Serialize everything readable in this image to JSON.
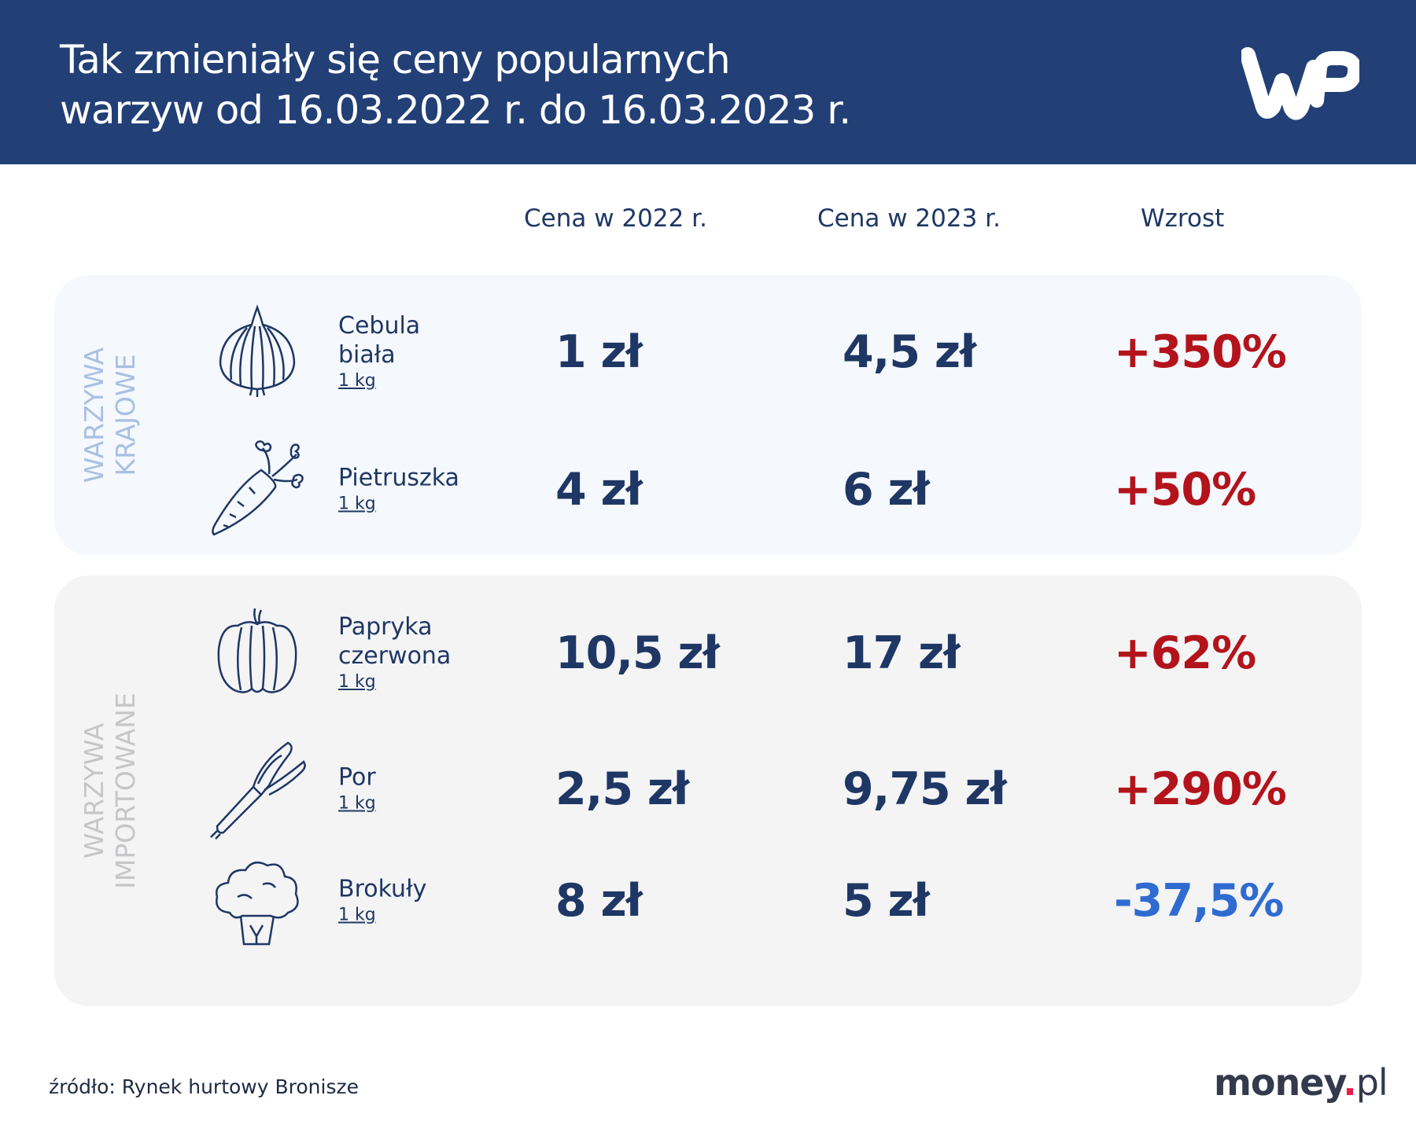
{
  "header": {
    "title_line1": "Tak zmieniały się ceny popularnych",
    "title_line2": "warzyw od 16.03.2022 r. do 16.03.2023 r.",
    "logo": "WP"
  },
  "columns": [
    "Cena w 2022 r.",
    "Cena w 2023 r.",
    "Wzrost"
  ],
  "groups": [
    {
      "label_line1": "WARZYWA",
      "label_line2": "KRAJOWE",
      "color": "#a9bfe3"
    },
    {
      "label_line1": "WARZYWA",
      "label_line2": "IMPORTOWANE",
      "color": "#c6c6c8"
    }
  ],
  "rows": [
    {
      "name": "Cebula biała",
      "name_line1": "Cebula",
      "name_line2": "biała",
      "unit": "1 kg",
      "icon": "onion-icon",
      "price_2022": "1 zł",
      "price_2023": "4,5 zł",
      "change": "+350%"
    },
    {
      "name": "Pietruszka",
      "name_line1": "Pietruszka",
      "name_line2": "",
      "unit": "1 kg",
      "icon": "parsley-root-icon",
      "price_2022": "4 zł",
      "price_2023": "6 zł",
      "change": "+50%"
    },
    {
      "name": "Papryka czerwona",
      "name_line1": "Papryka",
      "name_line2": "czerwona",
      "unit": "1 kg",
      "icon": "pepper-icon",
      "price_2022": "10,5 zł",
      "price_2023": "17 zł",
      "change": "+62%"
    },
    {
      "name": "Por",
      "name_line1": "Por",
      "name_line2": "",
      "unit": "1 kg",
      "icon": "leek-icon",
      "price_2022": "2,5 zł",
      "price_2023": "9,75 zł",
      "change": "+290%"
    },
    {
      "name": "Brokuły",
      "name_line1": "Brokuły",
      "name_line2": "",
      "unit": "1 kg",
      "icon": "broccoli-icon",
      "price_2022": "8 zł",
      "price_2023": "5 zł",
      "change": "-37,5%"
    }
  ],
  "colors": {
    "header": "#223f76",
    "text": "#1f3764",
    "increase": "#b3141c",
    "decrease": "#2f6bd1"
  },
  "footer": {
    "source": "źródło: Rynek hurtowy Bronisze",
    "brand_main": "money",
    "brand_dot": ".",
    "brand_tld": "pl"
  }
}
